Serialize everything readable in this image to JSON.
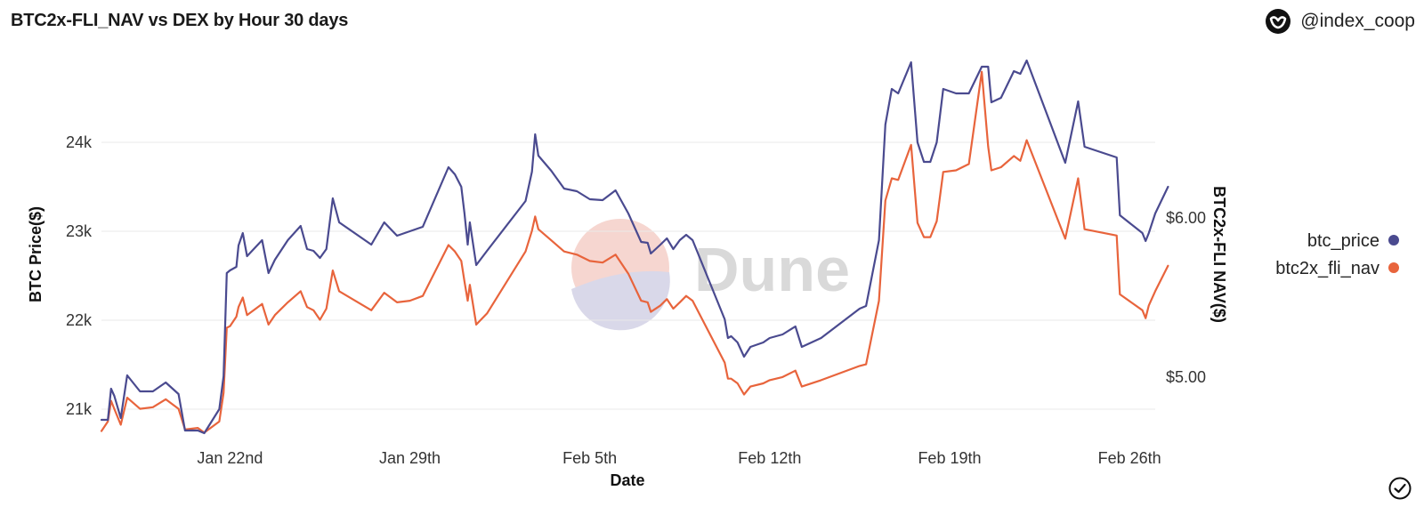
{
  "header": {
    "title": "BTC2x-FLI_NAV vs DEX by Hour 30 days",
    "brand": "@index_coop",
    "brand_icon": "index-coop-logo-icon"
  },
  "watermark": {
    "text": "Dune"
  },
  "footer": {
    "check_icon": "checkmark-circle-icon"
  },
  "colors": {
    "btc_price": "#4a4a8f",
    "btc2x_fli_nav": "#e8643c",
    "grid": "#e9e9e9"
  },
  "chart_data": {
    "type": "line",
    "xlabel": "Date",
    "ylabel_left": "BTC Price($)",
    "ylabel_right": "BTC2x-FLI NAV($)",
    "x_ticks": [
      "Jan 22nd",
      "Jan 29th",
      "Feb 5th",
      "Feb 12th",
      "Feb 19th",
      "Feb 26th"
    ],
    "y_left_ticks": [
      "21k",
      "22k",
      "23k",
      "24k"
    ],
    "y_right_ticks": [
      "$5.00",
      "$6.00"
    ],
    "y_left_range": [
      20700,
      24900
    ],
    "y_right_range": [
      4.63,
      6.98
    ],
    "x_range": [
      "2023-01-17",
      "2023-02-27"
    ],
    "grid": true,
    "legend_position": "right",
    "series": [
      {
        "name": "btc_price",
        "axis": "left",
        "points": [
          [
            "2023-01-17 00:00",
            20880
          ],
          [
            "2023-01-17 06:00",
            20880
          ],
          [
            "2023-01-17 09:00",
            21230
          ],
          [
            "2023-01-17 12:00",
            21150
          ],
          [
            "2023-01-17 18:00",
            20900
          ],
          [
            "2023-01-18 00:00",
            21380
          ],
          [
            "2023-01-18 12:00",
            21200
          ],
          [
            "2023-01-19 00:00",
            21200
          ],
          [
            "2023-01-19 12:00",
            21300
          ],
          [
            "2023-01-20 00:00",
            21170
          ],
          [
            "2023-01-20 06:00",
            20760
          ],
          [
            "2023-01-20 18:00",
            20760
          ],
          [
            "2023-01-21 00:00",
            20730
          ],
          [
            "2023-01-21 14:00",
            21000
          ],
          [
            "2023-01-21 18:00",
            21370
          ],
          [
            "2023-01-21 21:00",
            22530
          ],
          [
            "2023-01-22 00:00",
            22560
          ],
          [
            "2023-01-22 06:00",
            22600
          ],
          [
            "2023-01-22 08:00",
            22840
          ],
          [
            "2023-01-22 12:00",
            22980
          ],
          [
            "2023-01-22 16:00",
            22720
          ],
          [
            "2023-01-23 06:00",
            22900
          ],
          [
            "2023-01-23 12:00",
            22530
          ],
          [
            "2023-01-23 18:00",
            22680
          ],
          [
            "2023-01-24 06:00",
            22900
          ],
          [
            "2023-01-24 18:00",
            23060
          ],
          [
            "2023-01-25 00:00",
            22800
          ],
          [
            "2023-01-25 06:00",
            22780
          ],
          [
            "2023-01-25 12:00",
            22700
          ],
          [
            "2023-01-25 18:00",
            22800
          ],
          [
            "2023-01-26 00:00",
            23370
          ],
          [
            "2023-01-26 06:00",
            23100
          ],
          [
            "2023-01-27 12:00",
            22850
          ],
          [
            "2023-01-28 00:00",
            23100
          ],
          [
            "2023-01-28 12:00",
            22950
          ],
          [
            "2023-01-29 00:00",
            23000
          ],
          [
            "2023-01-29 12:00",
            23050
          ],
          [
            "2023-01-30 12:00",
            23720
          ],
          [
            "2023-01-30 18:00",
            23640
          ],
          [
            "2023-01-31 00:00",
            23500
          ],
          [
            "2023-01-31 03:00",
            23200
          ],
          [
            "2023-01-31 06:00",
            22850
          ],
          [
            "2023-01-31 08:00",
            23100
          ],
          [
            "2023-01-31 14:00",
            22620
          ],
          [
            "2023-02-01 00:00",
            22780
          ],
          [
            "2023-02-02 12:00",
            23340
          ],
          [
            "2023-02-02 18:00",
            23670
          ],
          [
            "2023-02-02 21:00",
            24090
          ],
          [
            "2023-02-03 00:00",
            23850
          ],
          [
            "2023-02-03 12:00",
            23680
          ],
          [
            "2023-02-04 00:00",
            23480
          ],
          [
            "2023-02-04 12:00",
            23450
          ],
          [
            "2023-02-05 00:00",
            23360
          ],
          [
            "2023-02-05 12:00",
            23350
          ],
          [
            "2023-02-06 00:00",
            23460
          ],
          [
            "2023-02-06 12:00",
            23200
          ],
          [
            "2023-02-07 00:00",
            22880
          ],
          [
            "2023-02-07 06:00",
            22870
          ],
          [
            "2023-02-07 09:00",
            22750
          ],
          [
            "2023-02-07 18:00",
            22850
          ],
          [
            "2023-02-08 00:00",
            22920
          ],
          [
            "2023-02-08 06:00",
            22800
          ],
          [
            "2023-02-08 12:00",
            22900
          ],
          [
            "2023-02-08 18:00",
            22960
          ],
          [
            "2023-02-09 00:00",
            22900
          ],
          [
            "2023-02-10 06:00",
            22010
          ],
          [
            "2023-02-10 09:00",
            21800
          ],
          [
            "2023-02-10 12:00",
            21820
          ],
          [
            "2023-02-10 18:00",
            21750
          ],
          [
            "2023-02-11 00:00",
            21590
          ],
          [
            "2023-02-11 06:00",
            21700
          ],
          [
            "2023-02-11 18:00",
            21750
          ],
          [
            "2023-02-12 00:00",
            21800
          ],
          [
            "2023-02-12 12:00",
            21840
          ],
          [
            "2023-02-13 00:00",
            21930
          ],
          [
            "2023-02-13 06:00",
            21700
          ],
          [
            "2023-02-14 00:00",
            21800
          ],
          [
            "2023-02-15 12:00",
            22130
          ],
          [
            "2023-02-15 18:00",
            22160
          ],
          [
            "2023-02-16 06:00",
            22900
          ],
          [
            "2023-02-16 12:00",
            24200
          ],
          [
            "2023-02-16 18:00",
            24600
          ],
          [
            "2023-02-17 00:00",
            24550
          ],
          [
            "2023-02-17 12:00",
            24900
          ],
          [
            "2023-02-17 18:00",
            24000
          ],
          [
            "2023-02-18 00:00",
            23780
          ],
          [
            "2023-02-18 06:00",
            23780
          ],
          [
            "2023-02-18 12:00",
            24000
          ],
          [
            "2023-02-18 18:00",
            24600
          ],
          [
            "2023-02-19 06:00",
            24550
          ],
          [
            "2023-02-19 18:00",
            24550
          ],
          [
            "2023-02-20 06:00",
            24850
          ],
          [
            "2023-02-20 12:00",
            24850
          ],
          [
            "2023-02-20 15:00",
            24450
          ],
          [
            "2023-02-21 00:00",
            24500
          ],
          [
            "2023-02-21 12:00",
            24800
          ],
          [
            "2023-02-21 18:00",
            24770
          ],
          [
            "2023-02-22 00:00",
            24920
          ],
          [
            "2023-02-23 12:00",
            23770
          ],
          [
            "2023-02-24 00:00",
            24460
          ],
          [
            "2023-02-24 06:00",
            23950
          ],
          [
            "2023-02-25 12:00",
            23830
          ],
          [
            "2023-02-25 15:00",
            23180
          ],
          [
            "2023-02-26 12:00",
            22980
          ],
          [
            "2023-02-26 15:00",
            22890
          ],
          [
            "2023-02-26 18:00",
            22980
          ],
          [
            "2023-02-27 00:00",
            23200
          ],
          [
            "2023-02-27 12:00",
            23500
          ]
        ]
      },
      {
        "name": "btc2x_fli_nav",
        "axis": "right",
        "points": [
          [
            "2023-01-17 00:00",
            4.66
          ],
          [
            "2023-01-17 06:00",
            4.72
          ],
          [
            "2023-01-17 09:00",
            4.85
          ],
          [
            "2023-01-17 12:00",
            4.8
          ],
          [
            "2023-01-17 18:00",
            4.7
          ],
          [
            "2023-01-18 00:00",
            4.87
          ],
          [
            "2023-01-18 12:00",
            4.8
          ],
          [
            "2023-01-19 00:00",
            4.81
          ],
          [
            "2023-01-19 12:00",
            4.86
          ],
          [
            "2023-01-20 00:00",
            4.8
          ],
          [
            "2023-01-20 06:00",
            4.67
          ],
          [
            "2023-01-20 18:00",
            4.68
          ],
          [
            "2023-01-21 00:00",
            4.65
          ],
          [
            "2023-01-21 14:00",
            4.72
          ],
          [
            "2023-01-21 18:00",
            4.9
          ],
          [
            "2023-01-21 21:00",
            5.31
          ],
          [
            "2023-01-22 00:00",
            5.32
          ],
          [
            "2023-01-22 06:00",
            5.38
          ],
          [
            "2023-01-22 08:00",
            5.44
          ],
          [
            "2023-01-22 12:00",
            5.5
          ],
          [
            "2023-01-22 16:00",
            5.39
          ],
          [
            "2023-01-23 06:00",
            5.46
          ],
          [
            "2023-01-23 12:00",
            5.33
          ],
          [
            "2023-01-23 18:00",
            5.39
          ],
          [
            "2023-01-24 06:00",
            5.47
          ],
          [
            "2023-01-24 18:00",
            5.54
          ],
          [
            "2023-01-25 00:00",
            5.44
          ],
          [
            "2023-01-25 06:00",
            5.42
          ],
          [
            "2023-01-25 12:00",
            5.36
          ],
          [
            "2023-01-25 18:00",
            5.43
          ],
          [
            "2023-01-26 00:00",
            5.67
          ],
          [
            "2023-01-26 06:00",
            5.54
          ],
          [
            "2023-01-27 12:00",
            5.42
          ],
          [
            "2023-01-28 00:00",
            5.53
          ],
          [
            "2023-01-28 12:00",
            5.47
          ],
          [
            "2023-01-29 00:00",
            5.48
          ],
          [
            "2023-01-29 12:00",
            5.51
          ],
          [
            "2023-01-30 12:00",
            5.83
          ],
          [
            "2023-01-30 18:00",
            5.79
          ],
          [
            "2023-01-31 00:00",
            5.73
          ],
          [
            "2023-01-31 03:00",
            5.6
          ],
          [
            "2023-01-31 06:00",
            5.48
          ],
          [
            "2023-01-31 08:00",
            5.58
          ],
          [
            "2023-01-31 14:00",
            5.33
          ],
          [
            "2023-02-01 00:00",
            5.4
          ],
          [
            "2023-02-02 12:00",
            5.79
          ],
          [
            "2023-02-02 18:00",
            5.92
          ],
          [
            "2023-02-02 21:00",
            6.01
          ],
          [
            "2023-02-03 00:00",
            5.93
          ],
          [
            "2023-02-03 12:00",
            5.86
          ],
          [
            "2023-02-04 00:00",
            5.79
          ],
          [
            "2023-02-04 12:00",
            5.77
          ],
          [
            "2023-02-05 00:00",
            5.73
          ],
          [
            "2023-02-05 12:00",
            5.72
          ],
          [
            "2023-02-06 00:00",
            5.77
          ],
          [
            "2023-02-06 12:00",
            5.65
          ],
          [
            "2023-02-07 00:00",
            5.48
          ],
          [
            "2023-02-07 06:00",
            5.47
          ],
          [
            "2023-02-07 09:00",
            5.41
          ],
          [
            "2023-02-07 18:00",
            5.45
          ],
          [
            "2023-02-08 00:00",
            5.49
          ],
          [
            "2023-02-08 06:00",
            5.43
          ],
          [
            "2023-02-08 12:00",
            5.47
          ],
          [
            "2023-02-08 18:00",
            5.51
          ],
          [
            "2023-02-09 00:00",
            5.48
          ],
          [
            "2023-02-10 06:00",
            5.09
          ],
          [
            "2023-02-10 09:00",
            4.99
          ],
          [
            "2023-02-10 12:00",
            4.99
          ],
          [
            "2023-02-10 18:00",
            4.96
          ],
          [
            "2023-02-11 00:00",
            4.89
          ],
          [
            "2023-02-11 06:00",
            4.94
          ],
          [
            "2023-02-11 18:00",
            4.96
          ],
          [
            "2023-02-12 00:00",
            4.98
          ],
          [
            "2023-02-12 12:00",
            5.0
          ],
          [
            "2023-02-13 00:00",
            5.04
          ],
          [
            "2023-02-13 06:00",
            4.94
          ],
          [
            "2023-02-14 00:00",
            4.98
          ],
          [
            "2023-02-15 12:00",
            5.07
          ],
          [
            "2023-02-15 18:00",
            5.08
          ],
          [
            "2023-02-16 06:00",
            5.48
          ],
          [
            "2023-02-16 12:00",
            6.11
          ],
          [
            "2023-02-16 18:00",
            6.25
          ],
          [
            "2023-02-17 00:00",
            6.24
          ],
          [
            "2023-02-17 12:00",
            6.46
          ],
          [
            "2023-02-17 18:00",
            5.97
          ],
          [
            "2023-02-18 00:00",
            5.88
          ],
          [
            "2023-02-18 06:00",
            5.88
          ],
          [
            "2023-02-18 12:00",
            5.98
          ],
          [
            "2023-02-18 18:00",
            6.29
          ],
          [
            "2023-02-19 06:00",
            6.3
          ],
          [
            "2023-02-19 18:00",
            6.34
          ],
          [
            "2023-02-20 06:00",
            6.92
          ],
          [
            "2023-02-20 12:00",
            6.45
          ],
          [
            "2023-02-20 15:00",
            6.3
          ],
          [
            "2023-02-21 00:00",
            6.32
          ],
          [
            "2023-02-21 12:00",
            6.39
          ],
          [
            "2023-02-21 18:00",
            6.36
          ],
          [
            "2023-02-22 00:00",
            6.49
          ],
          [
            "2023-02-23 12:00",
            5.87
          ],
          [
            "2023-02-24 00:00",
            6.25
          ],
          [
            "2023-02-24 06:00",
            5.93
          ],
          [
            "2023-02-25 12:00",
            5.89
          ],
          [
            "2023-02-25 15:00",
            5.52
          ],
          [
            "2023-02-26 12:00",
            5.42
          ],
          [
            "2023-02-26 15:00",
            5.37
          ],
          [
            "2023-02-26 18:00",
            5.45
          ],
          [
            "2023-02-27 00:00",
            5.54
          ],
          [
            "2023-02-27 12:00",
            5.7
          ]
        ]
      }
    ]
  }
}
